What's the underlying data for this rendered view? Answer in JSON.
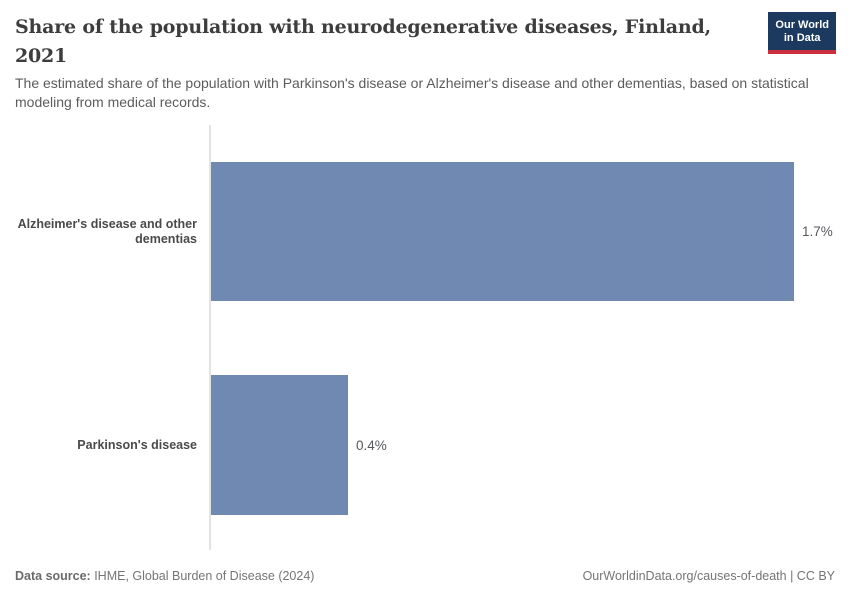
{
  "header": {
    "title": "Share of the population with neurodegenerative diseases, Finland,\n2021",
    "subtitle": "The estimated share of the population with Parkinson's disease or Alzheimer's disease and other dementias, based on statistical modeling from medical records.",
    "logo": {
      "line1": "Our World",
      "line2": "in Data"
    }
  },
  "chart_data": {
    "type": "bar",
    "orientation": "horizontal",
    "title": "Share of the population with neurodegenerative diseases, Finland, 2021",
    "unit": "%",
    "categories": [
      "Alzheimer's disease and other\ndementias",
      "Parkinson's disease"
    ],
    "values": [
      1.7,
      0.4
    ],
    "value_labels": [
      "1.7%",
      "0.4%"
    ],
    "xlim": [
      0,
      1.7
    ],
    "grid": false,
    "legend": false,
    "bar_color": "#7089b3",
    "axis_line_color": "#e3e3e3"
  },
  "footer": {
    "source_label": "Data source:",
    "source_text": " IHME, Global Burden of Disease (2024)",
    "link_text": "OurWorldinData.org/causes-of-death | CC BY"
  },
  "colors": {
    "title": "#3d3d3d",
    "subtitle": "#5c5c5c",
    "logo_navy": "#1c3a5f",
    "logo_red": "#cb2f3d"
  }
}
